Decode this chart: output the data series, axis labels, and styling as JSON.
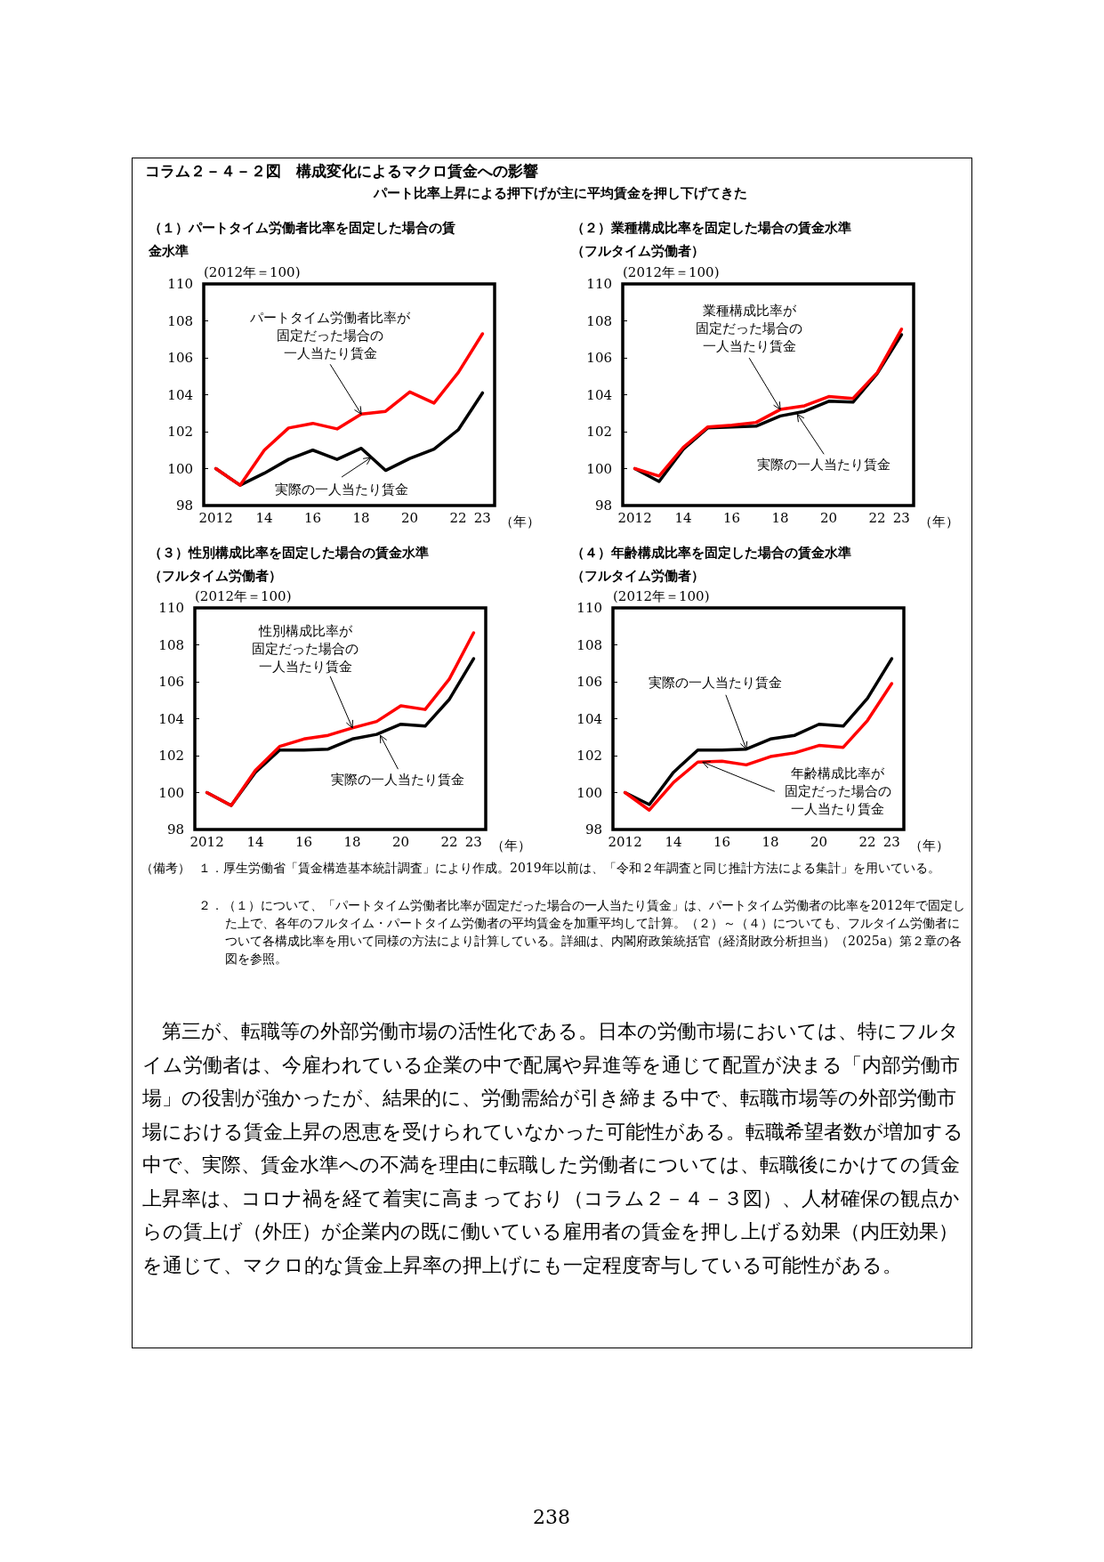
{
  "chart_data": [
    {
      "type": "other",
      "title": "コラム２－４－２図　構成変化によるマクロ賃金への影響",
      "subtitle": "パート比率上昇による押下げが主に平均賃金を押し下げてきた"
    },
    {
      "type": "line",
      "title": "（１）パートタイム労働者比率を固定した場合の賃金水準",
      "ylabel": "(2012年＝100)",
      "xlabel": "（年）",
      "marker": "none",
      "line_style": "solid",
      "x": [
        2012,
        2013,
        2014,
        2015,
        2016,
        2017,
        2018,
        2019,
        2020,
        2021,
        2022,
        2023
      ],
      "series": [
        {
          "color": "#000000",
          "values": [
            100,
            99.1,
            99.75,
            100.5,
            101.0,
            100.5,
            101.1,
            99.9,
            100.55,
            101.05,
            102.1,
            104.1
          ]
        },
        {
          "color": "#ff0000",
          "values": [
            100,
            99.1,
            101.0,
            102.2,
            102.45,
            102.15,
            102.95,
            103.1,
            104.15,
            103.55,
            105.2,
            107.3
          ]
        }
      ],
      "xlim": [
        2011.5,
        2023.5
      ],
      "xticks": [
        {
          "value": 2012,
          "label": "2012"
        },
        {
          "value": 2014,
          "label": "14"
        },
        {
          "value": 2016,
          "label": "16"
        },
        {
          "value": 2018,
          "label": "18"
        },
        {
          "value": 2020,
          "label": "20"
        },
        {
          "value": 2022,
          "label": "22"
        },
        {
          "value": 2023,
          "label": "23"
        }
      ],
      "ylim": [
        98,
        110
      ],
      "yticks": [
        98,
        100,
        102,
        104,
        106,
        108,
        110
      ],
      "annotations": [
        "パートタイム労働者比率が",
        "固定だった場合の",
        {
          "text": "一人当たり賃金",
          "x": 2018,
          "y": 102.95
        },
        {
          "text": "実際の一人当たり賃金",
          "x": 2018.4,
          "y": 100.6
        }
      ]
    },
    {
      "type": "line",
      "title": "（２）業種構成比率を固定した場合の賃金水準（フルタイム労働者）",
      "ylabel": "(2012年＝100)",
      "xlabel": "（年）",
      "marker": "none",
      "line_style": "solid",
      "x": [
        2012,
        2013,
        2014,
        2015,
        2016,
        2017,
        2018,
        2019,
        2020,
        2021,
        2022,
        2023
      ],
      "series": [
        {
          "color": "#000000",
          "values": [
            100,
            99.3,
            101.05,
            102.2,
            102.25,
            102.3,
            102.85,
            103.1,
            103.65,
            103.6,
            105.15,
            107.25
          ]
        },
        {
          "color": "#ff0000",
          "values": [
            100,
            99.6,
            101.15,
            102.25,
            102.35,
            102.5,
            103.2,
            103.4,
            103.9,
            103.8,
            105.2,
            107.55
          ]
        }
      ],
      "xlim": [
        2011.5,
        2023.5
      ],
      "xticks": [
        {
          "value": 2012,
          "label": "2012"
        },
        {
          "value": 2014,
          "label": "14"
        },
        {
          "value": 2016,
          "label": "16"
        },
        {
          "value": 2018,
          "label": "18"
        },
        {
          "value": 2020,
          "label": "20"
        },
        {
          "value": 2022,
          "label": "22"
        },
        {
          "value": 2023,
          "label": "23"
        }
      ],
      "ylim": [
        98,
        110
      ],
      "yticks": [
        98,
        100,
        102,
        104,
        106,
        108,
        110
      ],
      "annotations": [
        "業種構成比率が",
        "固定だった場合の",
        {
          "text": "一人当たり賃金",
          "x": 2018,
          "y": 103.2
        },
        {
          "text": "実際の一人当たり賃金",
          "x": 2018.7,
          "y": 102.95
        }
      ]
    },
    {
      "type": "line",
      "title": "（３）性別構成比率を固定した場合の賃金水準（フルタイム労働者）",
      "ylabel": "(2012年＝100)",
      "xlabel": "（年）",
      "marker": "none",
      "line_style": "solid",
      "x": [
        2012,
        2013,
        2014,
        2015,
        2016,
        2017,
        2018,
        2019,
        2020,
        2021,
        2022,
        2023
      ],
      "series": [
        {
          "color": "#000000",
          "values": [
            100,
            99.3,
            101.1,
            102.3,
            102.3,
            102.35,
            102.9,
            103.15,
            103.7,
            103.6,
            105.05,
            107.25
          ]
        },
        {
          "color": "#ff0000",
          "values": [
            100,
            99.3,
            101.2,
            102.5,
            102.9,
            103.1,
            103.5,
            103.85,
            104.7,
            104.5,
            106.15,
            108.65
          ]
        }
      ],
      "xlim": [
        2011.5,
        2023.5
      ],
      "xticks": [
        {
          "value": 2012,
          "label": "2012"
        },
        {
          "value": 2014,
          "label": "14"
        },
        {
          "value": 2016,
          "label": "16"
        },
        {
          "value": 2018,
          "label": "18"
        },
        {
          "value": 2020,
          "label": "20"
        },
        {
          "value": 2022,
          "label": "22"
        },
        {
          "value": 2023,
          "label": "23"
        }
      ],
      "ylim": [
        98,
        110
      ],
      "yticks": [
        98,
        100,
        102,
        104,
        106,
        108,
        110
      ],
      "annotations": [
        "性別構成比率が",
        "固定だった場合の",
        {
          "text": "一人当たり賃金",
          "x": 2018,
          "y": 103.5
        },
        {
          "text": "実際の一人当たり賃金",
          "x": 2019.15,
          "y": 103.1
        }
      ]
    },
    {
      "type": "line",
      "title": "（４）年齢構成比率を固定した場合の賃金水準（フルタイム労働者）",
      "ylabel": "(2012年＝100)",
      "xlabel": "（年）",
      "marker": "none",
      "line_style": "solid",
      "x": [
        2012,
        2013,
        2014,
        2015,
        2016,
        2017,
        2018,
        2019,
        2020,
        2021,
        2022,
        2023
      ],
      "series": [
        {
          "color": "#000000",
          "values": [
            100,
            99.35,
            101.1,
            102.3,
            102.3,
            102.35,
            102.9,
            103.1,
            103.7,
            103.6,
            105.1,
            107.25
          ]
        },
        {
          "color": "#ff0000",
          "values": [
            100,
            99.05,
            100.55,
            101.65,
            101.7,
            101.5,
            101.95,
            102.15,
            102.55,
            102.45,
            103.9,
            105.9
          ]
        }
      ],
      "xlim": [
        2011.5,
        2023.5
      ],
      "xticks": [
        {
          "value": 2012,
          "label": "2012"
        },
        {
          "value": 2014,
          "label": "14"
        },
        {
          "value": 2016,
          "label": "16"
        },
        {
          "value": 2018,
          "label": "18"
        },
        {
          "value": 2020,
          "label": "20"
        },
        {
          "value": 2022,
          "label": "22"
        },
        {
          "value": 2023,
          "label": "23"
        }
      ],
      "ylim": [
        98,
        110
      ],
      "yticks": [
        98,
        100,
        102,
        104,
        106,
        108,
        110
      ],
      "annotations": [
        {
          "text": "実際の一人当たり賃金",
          "x": 2017,
          "y": 102.35
        },
        "年齢構成比率が",
        {
          "text": "固定だった場合の",
          "x": 2015.2,
          "y": 101.65
        },
        "一人当たり賃金"
      ]
    },
    {
      "type": "other",
      "annotations": [
        "（備考）",
        "１．厚生労働省「賃金構造基本統計調査」により作成。2019年以前は、「令和２年調査と同じ推計方法による集計」を用いている。",
        "２．（１）について、「パートタイム労働者比率が固定だった場合の一人当たり賃金」は、パートタイム労働者の比率を2012年で固定した上で、各年のフルタイム・パートタイム労働者の平均賃金を加重平均して計算。（２）～（４）についても、フルタイム労働者について各構成比率を用いて同様の方法により計算している。詳細は、内閣府政策統括官（経済財政分析担当）（2025a）第２章の各図を参照。",
        "第三が、転職等の外部労働市場の活性化である。日本の労働市場においては、特にフルタイム労働者は、今雇われている企業の中で配属や昇進等を通じて配置が決まる「内部労働市場」の役割が強かったが、結果的に、労働需給が引き締まる中で、転職市場等の外部労働市場における賃金上昇の恩恵を受けられていなかった可能性がある。転職希望者数が増加する中で、実際、賃金水準への不満を理由に転職した労働者については、転職後にかけての賃金上昇率は、コロナ禍を経て着実に高まっており（コラム２－４－３図）、人材確保の観点からの賃上げ（外圧）が企業内の既に働いている雇用者の賃金を押し上げる効果（内圧効果）を通じて、マクロ的な賃金上昇率の押上げにも一定程度寄与している可能性がある。",
        "238"
      ]
    }
  ]
}
